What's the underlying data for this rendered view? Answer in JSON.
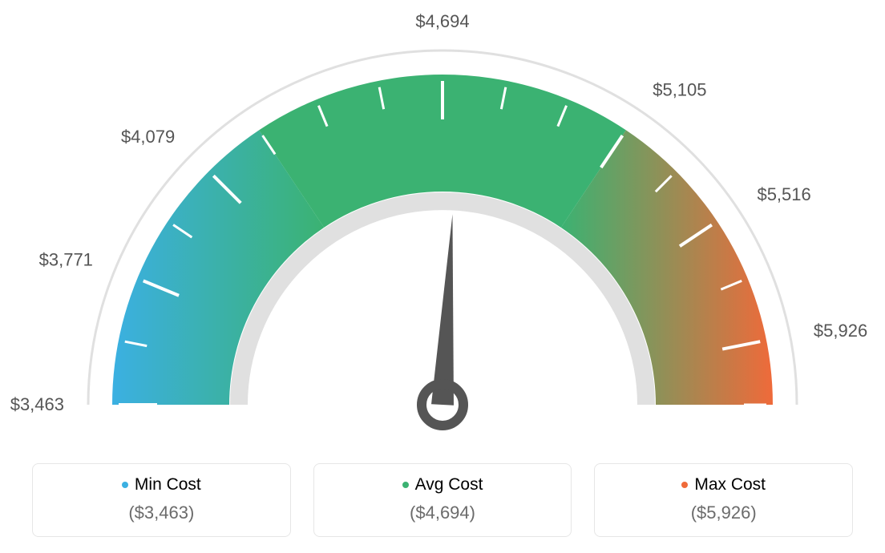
{
  "gauge": {
    "type": "gauge",
    "start_angle_deg": 180,
    "end_angle_deg": 0,
    "tick_labels": [
      "$3,463",
      "$3,771",
      "$4,079",
      "$4,694",
      "$5,105",
      "$5,516",
      "$5,926"
    ],
    "tick_label_angles_deg": [
      180,
      157.5,
      135,
      90,
      56.25,
      33.75,
      11.25
    ],
    "outer_radius": 412,
    "inner_radius": 266,
    "colors": {
      "min": "#3bb0e2",
      "avg": "#3bb272",
      "max": "#ef6a3a",
      "outline": "#e0e0e0",
      "tick": "#ffffff",
      "needle": "#555555",
      "label_text": "#555555"
    },
    "fontsize_labels": 22,
    "background": "#ffffff"
  },
  "legend": {
    "min": {
      "label": "Min Cost",
      "value": "($3,463)",
      "color": "#3bb0e2"
    },
    "avg": {
      "label": "Avg Cost",
      "value": "($4,694)",
      "color": "#3bb272"
    },
    "max": {
      "label": "Max Cost",
      "value": "($5,926)",
      "color": "#ef6a3a"
    },
    "border_color": "#e6e6e6",
    "value_color": "#6b6b6b",
    "fontsize_title": 21,
    "fontsize_value": 22
  }
}
